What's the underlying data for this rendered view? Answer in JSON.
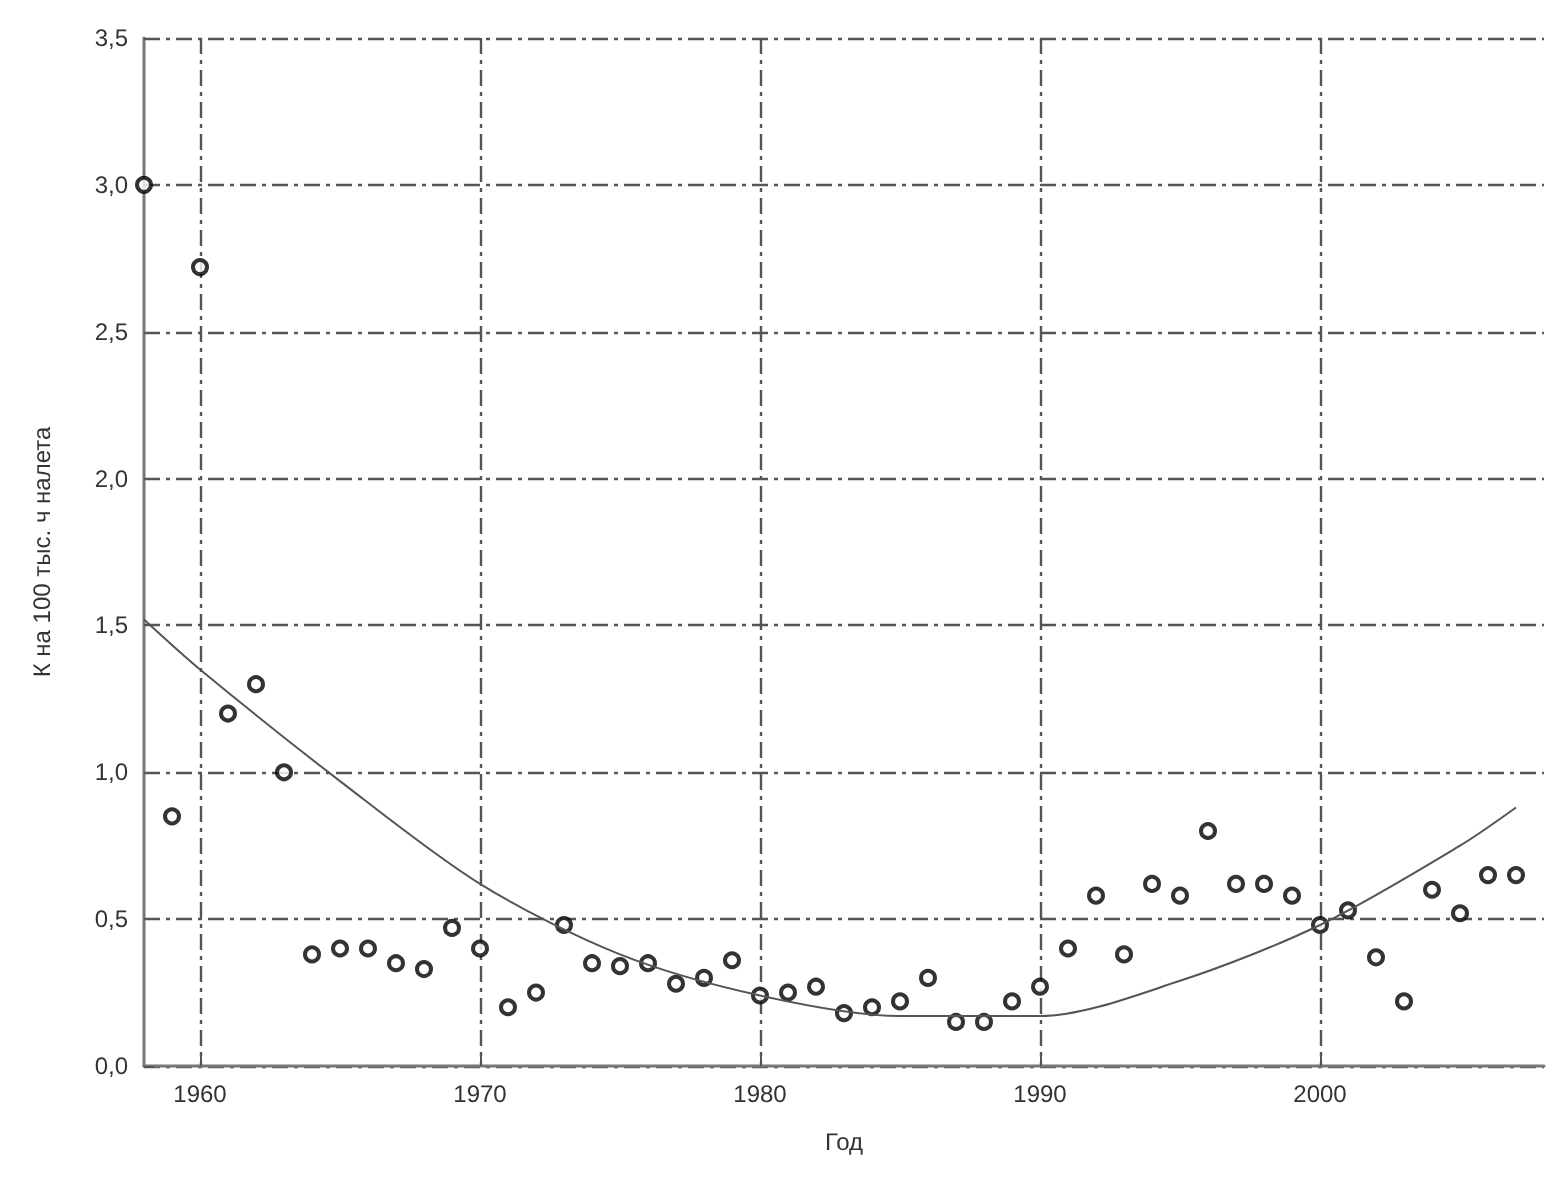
{
  "chart_data": {
    "type": "scatter",
    "xlabel": "Год",
    "ylabel": "К на 100 тыс. ч налета",
    "xlim": [
      1958,
      2008
    ],
    "xticks": [
      1960,
      1970,
      1980,
      1990,
      2000
    ],
    "ylim": [
      0,
      3.5
    ],
    "yticks": [
      {
        "value": 0,
        "label": "0,0"
      },
      {
        "value": 0.5,
        "label": "0,5"
      },
      {
        "value": 1,
        "label": "1,0"
      },
      {
        "value": 1.5,
        "label": "1,5"
      },
      {
        "value": 2,
        "label": "2,0"
      },
      {
        "value": 2.5,
        "label": "2,5"
      },
      {
        "value": 3,
        "label": "3,0"
      },
      {
        "value": 3.5,
        "label": "3,5"
      }
    ],
    "grid": true,
    "marker": "circle",
    "series": [
      {
        "color": "#000000",
        "x": [
          1958,
          1959,
          1960,
          1961,
          1962,
          1963,
          1964,
          1965,
          1966,
          1967,
          1968,
          1969,
          1970,
          1971,
          1972,
          1973,
          1974,
          1975,
          1976,
          1977,
          1978,
          1979,
          1980,
          1981,
          1982,
          1983,
          1984,
          1985,
          1986,
          1987,
          1988,
          1989,
          1990,
          1991,
          1992,
          1993,
          1994,
          1995,
          1996,
          1997,
          1998,
          1999,
          2000,
          2001,
          2002,
          2003,
          2004,
          2005,
          2006,
          2007
        ],
        "values": [
          3.0,
          0.85,
          2.72,
          1.2,
          1.3,
          1.0,
          0.38,
          0.4,
          0.4,
          0.35,
          0.33,
          0.47,
          0.4,
          0.2,
          0.25,
          0.48,
          0.35,
          0.34,
          0.35,
          0.28,
          0.3,
          0.36,
          0.24,
          0.25,
          0.27,
          0.18,
          0.2,
          0.22,
          0.3,
          0.15,
          0.15,
          0.22,
          0.27,
          0.4,
          0.58,
          0.38,
          0.62,
          0.58,
          0.8,
          0.62,
          0.62,
          0.58,
          0.48,
          0.53,
          0.37,
          0.22,
          0.6,
          0.52,
          0.65,
          0.65
        ]
      },
      {
        "type": "line",
        "color": "#555555",
        "marker": "none",
        "line_style": "solid",
        "x": [
          1958,
          1960,
          1965,
          1970,
          1975,
          1980,
          1985,
          1990,
          1995,
          2000,
          2005,
          2007
        ],
        "values": [
          1.52,
          1.35,
          0.97,
          0.62,
          0.38,
          0.24,
          0.17,
          0.17,
          0.29,
          0.48,
          0.75,
          0.88
        ]
      }
    ]
  }
}
